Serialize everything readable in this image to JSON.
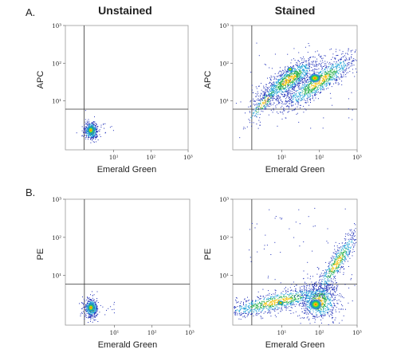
{
  "columns": {
    "left": "Unstained",
    "right": "Stained"
  },
  "rows": {
    "a": "A.",
    "b": "B."
  },
  "chart_data": [
    {
      "type": "scatter",
      "panel": "A-unstained",
      "xlabel": "Emerald Green",
      "ylabel": "APC",
      "x_ticks": [
        "10¹",
        "10²",
        "10³"
      ],
      "y_ticks": [
        "10³",
        "10²",
        "10¹"
      ],
      "scale": "log",
      "xlim": [
        0.5,
        1000
      ],
      "ylim": [
        0.5,
        1000
      ],
      "quadrant_gate": {
        "x": 1.6,
        "y": 6
      },
      "populations": [
        {
          "x": 0.9,
          "y": 1.3,
          "description": "single dense cluster, double negative"
        }
      ]
    },
    {
      "type": "scatter",
      "panel": "A-stained",
      "xlabel": "Emerald Green",
      "ylabel": "APC",
      "x_ticks": [
        "10¹",
        "10²",
        "10³"
      ],
      "y_ticks": [
        "10³",
        "10²",
        "10¹"
      ],
      "scale": "log",
      "xlim": [
        0.5,
        1000
      ],
      "ylim": [
        0.5,
        1000
      ],
      "quadrant_gate": {
        "x": 1.6,
        "y": 6
      },
      "populations": [
        {
          "x": 10,
          "y": 60,
          "description": "APC+ population"
        },
        {
          "x": 60,
          "y": 20,
          "description": "double positive population"
        }
      ]
    },
    {
      "type": "scatter",
      "panel": "B-unstained",
      "xlabel": "Emerald Green",
      "ylabel": "PE",
      "x_ticks": [
        "10¹",
        "10²",
        "10³"
      ],
      "y_ticks": [
        "10³",
        "10²",
        "10¹"
      ],
      "scale": "log",
      "xlim": [
        0.5,
        1000
      ],
      "ylim": [
        0.5,
        1000
      ],
      "quadrant_gate": {
        "x": 1.6,
        "y": 6
      },
      "populations": [
        {
          "x": 0.9,
          "y": 1.3,
          "description": "single dense cluster, double negative"
        }
      ]
    },
    {
      "type": "scatter",
      "panel": "B-stained",
      "xlabel": "Emerald Green",
      "ylabel": "PE",
      "x_ticks": [
        "10¹",
        "10²",
        "10³"
      ],
      "y_ticks": [
        "10³",
        "10²",
        "10¹"
      ],
      "scale": "log",
      "xlim": [
        0.5,
        1000
      ],
      "ylim": [
        0.5,
        1000
      ],
      "quadrant_gate": {
        "x": 1.6,
        "y": 6
      },
      "populations": [
        {
          "x": 10,
          "y": 1.5,
          "description": "Emerald Green+ PE- population"
        },
        {
          "x": 60,
          "y": 1.3,
          "description": "Emerald Green+ population with diagonal tail to PE+"
        }
      ]
    }
  ]
}
